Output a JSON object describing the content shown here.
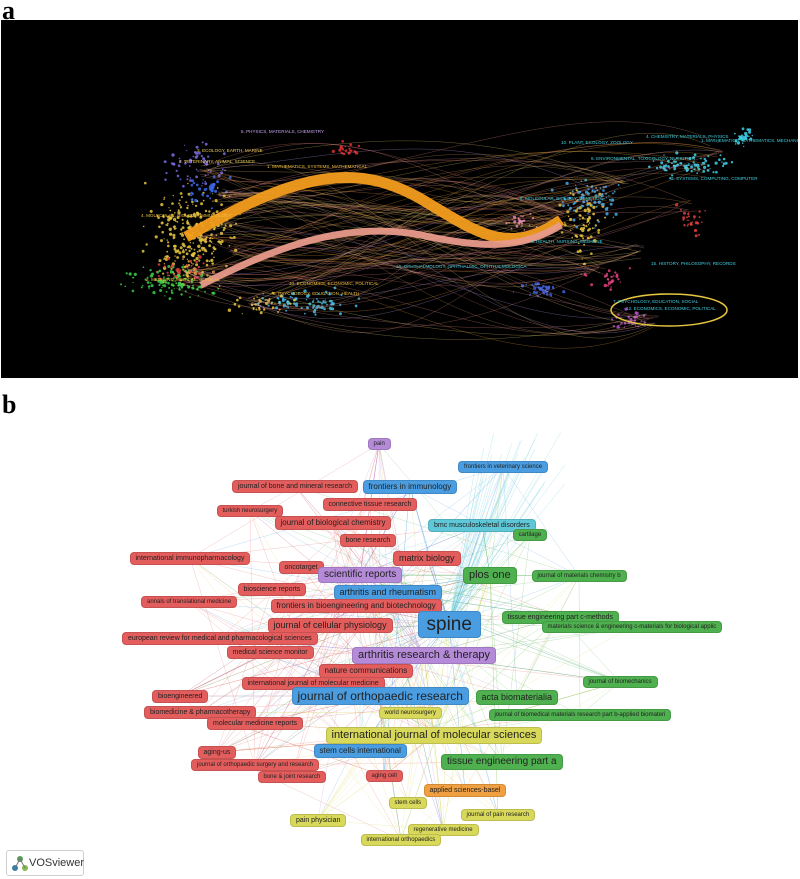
{
  "panel_a": {
    "letter": "a",
    "left_labels": [
      {
        "text": "5. PHYSICS, MATERIALS, CHEMISTRY",
        "color": "#c9a2f0"
      },
      {
        "text": "3. ECOLOGY, EARTH, MARINE",
        "color": "#f0d060"
      },
      {
        "text": "7. VETERINARY, ANIMAL, SCIENCE",
        "color": "#f0d060"
      },
      {
        "text": "1. MATHEMATICS, SYSTEMS, MATHEMATICAL",
        "color": "#f0c040"
      },
      {
        "text": "4. MOLECULAR, BIOLOGY, IMMUNOLOGY",
        "color": "#f0c040"
      },
      {
        "text": "2. MEDICINE, MEDICAL, CLINICAL",
        "color": "#f0c040"
      },
      {
        "text": "10. ECONOMICS, ECONOMIC, POLITICAL",
        "color": "#f0c040"
      },
      {
        "text": "6. PSYCHOLOGY, EDUCATION, HEALTH",
        "color": "#f0c040"
      }
    ],
    "right_labels": [
      {
        "text": "10. PLANT, ECOLOGY, ZOOLOGY",
        "color": "#40d0e0"
      },
      {
        "text": "4. CHEMISTRY, MATERIALS, PHYSICS",
        "color": "#40d0e0"
      },
      {
        "text": "1. MATHEMATICS, MATHEMATICS, MECHANICS",
        "color": "#40d0e0"
      },
      {
        "text": "6. ENVIRONMENTAL, TOXICOLOGY, NUTRITION",
        "color": "#40d0e0"
      },
      {
        "text": "3. SYSTEMS, COMPUTING, COMPUTER",
        "color": "#40d0e0"
      },
      {
        "text": "8. MOLECULAR, BIOLOGY, GENETICS",
        "color": "#40d0e0"
      },
      {
        "text": "5. HEALTH, NURSING, MEDICINE",
        "color": "#40d0e0"
      },
      {
        "text": "16. OPHTHALMOLOGY, OPHTHALMIC, OPHTHALMOLOGICA",
        "color": "#40d0e0"
      },
      {
        "text": "15. HISTORY, PHILOSOPHY, RECORDS",
        "color": "#40d0e0"
      },
      {
        "text": "7. PSYCHOLOGY, EDUCATION, SOCIAL",
        "color": "#40d0e0"
      },
      {
        "text": "12. ECONOMICS, ECONOMIC, POLITICAL",
        "color": "#40d0e0"
      }
    ]
  },
  "panel_b": {
    "letter": "b",
    "logo_text": "VOSviewer",
    "cluster_colors": {
      "red": "#e35d5d",
      "green": "#4fb04f",
      "blue": "#4a9de0",
      "yellow": "#d8d85a",
      "purple": "#b58ad8",
      "cyan": "#5fc8d8",
      "orange": "#f0a040"
    },
    "nodes": [
      {
        "label": "pain",
        "cluster": "purple"
      },
      {
        "label": "frontiers in veterinary science",
        "cluster": "blue"
      },
      {
        "label": "journal of bone and mineral research",
        "cluster": "red"
      },
      {
        "label": "frontiers in immunology",
        "cluster": "blue"
      },
      {
        "label": "turkish neurosurgery",
        "cluster": "red"
      },
      {
        "label": "connective tissue research",
        "cluster": "red"
      },
      {
        "label": "journal of biological chemistry",
        "cluster": "red"
      },
      {
        "label": "bmc musculoskeletal disorders",
        "cluster": "cyan"
      },
      {
        "label": "cartilage",
        "cluster": "green"
      },
      {
        "label": "bone research",
        "cluster": "red"
      },
      {
        "label": "international immunopharmacology",
        "cluster": "red"
      },
      {
        "label": "oncotarget",
        "cluster": "red"
      },
      {
        "label": "matrix biology",
        "cluster": "red"
      },
      {
        "label": "scientific reports",
        "cluster": "purple"
      },
      {
        "label": "plos one",
        "cluster": "green"
      },
      {
        "label": "journal of materials chemistry b",
        "cluster": "green"
      },
      {
        "label": "bioscience reports",
        "cluster": "red"
      },
      {
        "label": "arthritis and rheumatism",
        "cluster": "blue"
      },
      {
        "label": "annals of translational medicine",
        "cluster": "red"
      },
      {
        "label": "frontiers in bioengineering and biotechnology",
        "cluster": "red"
      },
      {
        "label": "tissue engineering part c-methods",
        "cluster": "green"
      },
      {
        "label": "spine",
        "cluster": "blue"
      },
      {
        "label": "journal of cellular physiology",
        "cluster": "red"
      },
      {
        "label": "materials science & engineering c-materials for biological applic",
        "cluster": "green"
      },
      {
        "label": "european review for medical and pharmacological sciences",
        "cluster": "red"
      },
      {
        "label": "medical science monitor",
        "cluster": "red"
      },
      {
        "label": "arthritis research & therapy",
        "cluster": "purple"
      },
      {
        "label": "nature communications",
        "cluster": "red"
      },
      {
        "label": "international journal of molecular medicine",
        "cluster": "red"
      },
      {
        "label": "journal of biomechanics",
        "cluster": "green"
      },
      {
        "label": "bioengineered",
        "cluster": "red"
      },
      {
        "label": "journal of orthopaedic research",
        "cluster": "blue"
      },
      {
        "label": "acta biomaterialia",
        "cluster": "green"
      },
      {
        "label": "biomedicine & pharmacotherapy",
        "cluster": "red"
      },
      {
        "label": "world neurosurgery",
        "cluster": "yellow"
      },
      {
        "label": "journal of biomedical materials research part b-applied biomateri",
        "cluster": "green"
      },
      {
        "label": "molecular medicine reports",
        "cluster": "red"
      },
      {
        "label": "international journal of molecular sciences",
        "cluster": "yellow"
      },
      {
        "label": "aging-us",
        "cluster": "red"
      },
      {
        "label": "stem cells international",
        "cluster": "blue"
      },
      {
        "label": "tissue engineering part a",
        "cluster": "green"
      },
      {
        "label": "journal of orthopaedic surgery and research",
        "cluster": "red"
      },
      {
        "label": "bone & joint research",
        "cluster": "red"
      },
      {
        "label": "aging cell",
        "cluster": "red"
      },
      {
        "label": "applied sciences-basel",
        "cluster": "orange"
      },
      {
        "label": "stem cells",
        "cluster": "yellow"
      },
      {
        "label": "journal of pain research",
        "cluster": "yellow"
      },
      {
        "label": "pain physician",
        "cluster": "yellow"
      },
      {
        "label": "regenerative medicine",
        "cluster": "yellow"
      },
      {
        "label": "international orthopaedics",
        "cluster": "yellow"
      }
    ]
  }
}
